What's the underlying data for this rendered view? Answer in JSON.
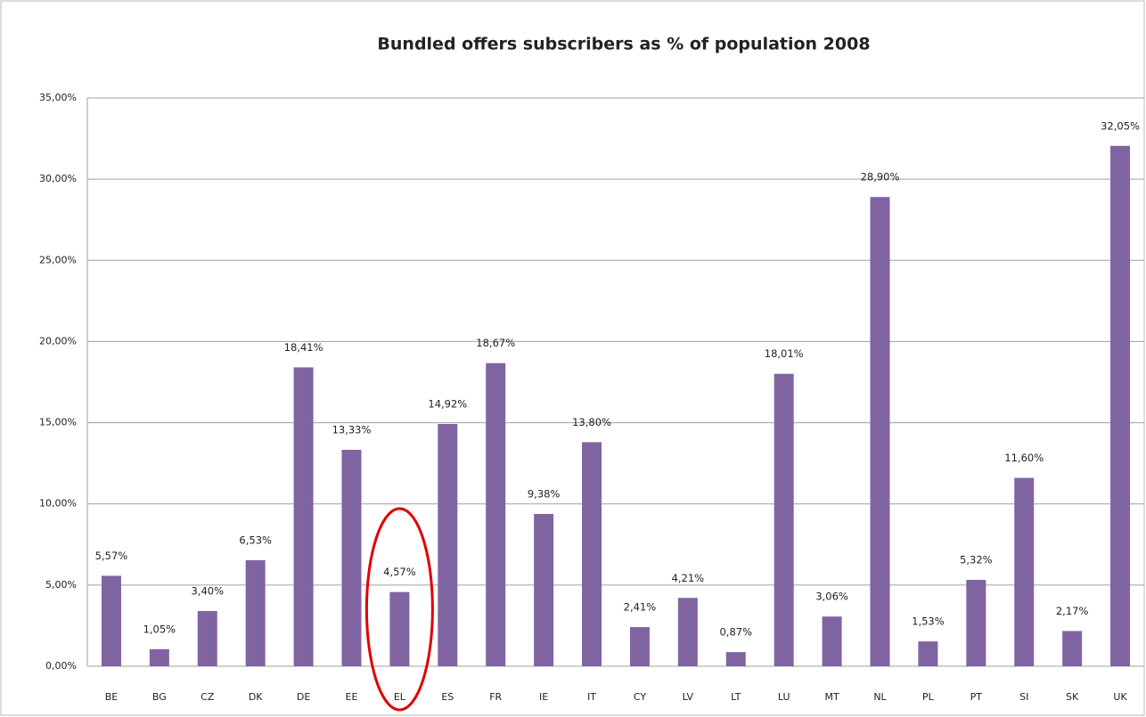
{
  "chart_data": {
    "type": "bar",
    "title": "Bundled offers subscribers as % of population  2008",
    "categories": [
      "BE",
      "BG",
      "CZ",
      "DK",
      "DE",
      "EE",
      "EL",
      "ES",
      "FR",
      "IE",
      "IT",
      "CY",
      "LV",
      "LT",
      "LU",
      "MT",
      "NL",
      "PL",
      "PT",
      "SI",
      "SK",
      "UK"
    ],
    "values": [
      5.57,
      1.05,
      3.4,
      6.53,
      18.41,
      13.33,
      4.57,
      14.92,
      18.67,
      9.38,
      13.8,
      2.41,
      4.21,
      0.87,
      18.01,
      3.06,
      28.9,
      1.53,
      5.32,
      11.6,
      2.17,
      32.05
    ],
    "value_labels": [
      "5,57%",
      "1,05%",
      "3,40%",
      "6,53%",
      "18,41%",
      "13,33%",
      "4,57%",
      "14,92%",
      "18,67%",
      "9,38%",
      "13,80%",
      "2,41%",
      "4,21%",
      "0,87%",
      "18,01%",
      "3,06%",
      "28,90%",
      "1,53%",
      "5,32%",
      "11,60%",
      "2,17%",
      "32,05%"
    ],
    "color": "#8064a2",
    "ylim": [
      0,
      35
    ],
    "yticks": [
      {
        "value": 0,
        "label": "0,00%"
      },
      {
        "value": 5,
        "label": "5,00%"
      },
      {
        "value": 10,
        "label": "10,00%"
      },
      {
        "value": 15,
        "label": "15,00%"
      },
      {
        "value": 20,
        "label": "20,00%"
      },
      {
        "value": 25,
        "label": "25,00%"
      },
      {
        "value": 30,
        "label": "30,00%"
      },
      {
        "value": 35,
        "label": "35,00%"
      }
    ],
    "grid": true
  }
}
